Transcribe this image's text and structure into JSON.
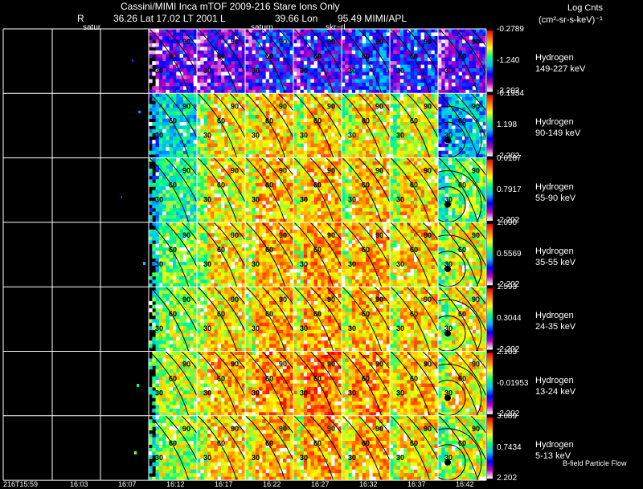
{
  "header": {
    "title": "Cassini/MIMI Inca mTOF  2009-216   Stare    Ions Only",
    "r_label": "R",
    "lat_text": "36.26 Lat 17.02 LT 2001 L",
    "lon_text": "39.66 Lon",
    "mimi_text": "95.49  MIMI/APL",
    "log_cnts": "Log Cnts",
    "units": "(cm²-sr-s-keV)⁻¹",
    "overlays": [
      "satur",
      "saturn",
      "skr~rl"
    ]
  },
  "chart_data": {
    "type": "heatmap",
    "title": "Cassini/MIMI Inca mTOF 2009-216 Stare Ions Only",
    "species": "Hydrogen",
    "x_tick_labels": [
      "216T15:59",
      "16:03",
      "16:07",
      "16:12",
      "16:17",
      "16:22",
      "16:27",
      "16:32",
      "16:37",
      "16:42"
    ],
    "panel_contour_labels": [
      "30",
      "60",
      "90"
    ],
    "colorscale": [
      "#ffffff",
      "#c000c0",
      "#0000ff",
      "#00c0ff",
      "#00ff80",
      "#ffff00",
      "#ff8000",
      "#ff0000"
    ],
    "rows": [
      {
        "species": "Hydrogen",
        "energy": "149-227 keV",
        "cbar_max": "-0.2789",
        "cbar_mid": "-1.240",
        "cbar_min": "-2.202",
        "level": [
          0,
          0,
          0,
          0.22,
          0.22,
          0.28,
          0.28,
          0.32,
          0.3,
          0.25
        ]
      },
      {
        "species": "Hydrogen",
        "energy": "90-149 keV",
        "cbar_max": "-0.1934",
        "cbar_mid": "1.198",
        "cbar_min": "-2.202",
        "level": [
          0,
          0,
          0,
          0.5,
          0.75,
          0.78,
          0.78,
          0.75,
          0.72,
          0.45
        ]
      },
      {
        "species": "Hydrogen",
        "energy": "55-90 keV",
        "cbar_max": "0.6187",
        "cbar_mid": "0.7917",
        "cbar_min": "-2.202",
        "level": [
          0,
          0,
          0,
          0.55,
          0.74,
          0.8,
          0.8,
          0.78,
          0.77,
          0.62
        ]
      },
      {
        "species": "Hydrogen",
        "energy": "35-55 keV",
        "cbar_max": "1.090",
        "cbar_mid": "0.5569",
        "cbar_min": "-2.202",
        "level": [
          0,
          0,
          0,
          0.62,
          0.76,
          0.8,
          0.82,
          0.8,
          0.78,
          0.72
        ]
      },
      {
        "species": "Hydrogen",
        "energy": "24-35 keV",
        "cbar_max": "1.593",
        "cbar_mid": "0.3044",
        "cbar_min": "-2.202",
        "level": [
          0,
          0,
          0,
          0.66,
          0.76,
          0.8,
          0.82,
          0.8,
          0.78,
          0.73
        ]
      },
      {
        "species": "Hydrogen",
        "energy": "13-24 keV",
        "cbar_max": "2.163",
        "cbar_mid": "-0.01953",
        "cbar_min": "-2.202",
        "level": [
          0,
          0,
          0,
          0.68,
          0.8,
          0.85,
          0.88,
          0.83,
          0.8,
          0.75
        ]
      },
      {
        "species": "Hydrogen",
        "energy": "5-13 keV",
        "cbar_max": "3.689",
        "cbar_mid": "0.7434",
        "cbar_min": "2.202",
        "level": [
          0,
          0,
          0,
          0.66,
          0.78,
          0.8,
          0.82,
          0.8,
          0.76,
          0.7
        ]
      }
    ],
    "footer_label": "B-field Particle Flow"
  }
}
